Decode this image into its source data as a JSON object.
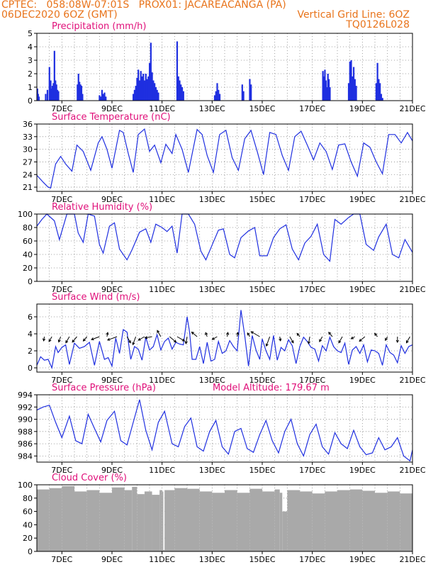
{
  "header": {
    "line1_left": "CPTEC:   058:08W-07:01S   PROX01: JACAREACANGA (PA)",
    "line2_left": "06DEC2020 6OZ (GMT)",
    "line2_right": "Vertical Grid Line: 6OZ",
    "line3_right": "TQ0126L028"
  },
  "colors": {
    "header": "#e8731a",
    "title": "#e0107a",
    "line": "#1f2fe0",
    "cloud": "#a9a9a9"
  },
  "chart_data": [
    {
      "id": "precip",
      "type": "bar",
      "title": "Precipitation (mm/h)",
      "ylim": [
        0,
        5
      ],
      "yticks": [
        0,
        1,
        2,
        3,
        4,
        5
      ],
      "x_unit": "days since 06DEC2020 06Z",
      "xlim": [
        0,
        15
      ],
      "x_tick_values": [
        1,
        3,
        5,
        7,
        9,
        11,
        13,
        15
      ],
      "x_tick_labels": [
        "7DEC",
        "9DEC",
        "11DEC",
        "13DEC",
        "15DEC",
        "17DEC",
        "19DEC",
        "21DEC"
      ],
      "x": [
        0.02,
        0.05,
        0.08,
        0.35,
        0.42,
        0.5,
        0.55,
        0.58,
        0.62,
        0.66,
        0.7,
        0.74,
        0.78,
        0.82,
        0.86,
        1.62,
        1.66,
        1.7,
        1.74,
        1.78,
        1.82,
        2.5,
        2.55,
        2.6,
        2.65,
        2.7,
        2.75,
        3.85,
        3.9,
        3.95,
        4.0,
        4.05,
        4.1,
        4.15,
        4.2,
        4.25,
        4.3,
        4.35,
        4.4,
        4.45,
        4.5,
        4.55,
        4.6,
        4.65,
        4.7,
        4.75,
        4.8,
        4.85,
        5.6,
        5.65,
        5.7,
        5.75,
        5.8,
        5.85,
        7.1,
        7.15,
        7.2,
        7.25,
        7.3,
        8.2,
        8.25,
        8.5,
        8.55,
        11.42,
        11.46,
        11.5,
        11.54,
        11.58,
        11.62,
        11.66,
        11.7,
        12.45,
        12.5,
        12.55,
        12.6,
        12.65,
        12.7,
        12.75,
        13.55,
        13.6,
        13.65,
        13.7,
        13.75,
        13.8
      ],
      "values": [
        0.9,
        0.5,
        0.3,
        0.5,
        0.8,
        2.5,
        1.5,
        0.9,
        1.1,
        1.3,
        3.7,
        1.5,
        1.2,
        0.8,
        0.7,
        1.2,
        2.0,
        1.4,
        1.2,
        1.1,
        0.5,
        0.4,
        0.3,
        0.8,
        0.5,
        0.6,
        0.3,
        0.5,
        0.8,
        1.1,
        1.7,
        2.3,
        1.5,
        2.2,
        1.8,
        2.0,
        1.5,
        2.0,
        1.6,
        1.8,
        2.8,
        4.3,
        2.1,
        1.5,
        1.3,
        1.0,
        0.8,
        0.6,
        4.4,
        1.8,
        1.5,
        1.2,
        1.0,
        0.7,
        0.4,
        0.7,
        1.3,
        0.8,
        0.5,
        1.2,
        0.7,
        1.6,
        1.2,
        2.2,
        1.8,
        2.3,
        1.5,
        1.0,
        2.0,
        1.6,
        1.0,
        1.3,
        2.9,
        3.0,
        1.8,
        2.5,
        1.6,
        1.1,
        1.3,
        2.8,
        1.6,
        1.3,
        0.5,
        0.2
      ],
      "grid": true
    },
    {
      "id": "temp",
      "type": "line",
      "title": "Surface Temperature (nC)",
      "ylim": [
        20,
        36
      ],
      "yticks": [
        21,
        24,
        27,
        30,
        33,
        36
      ],
      "x_unit": "days since 06DEC2020 06Z",
      "xlim": [
        0,
        15
      ],
      "x_tick_values": [
        1,
        3,
        5,
        7,
        9,
        11,
        13,
        15
      ],
      "x_tick_labels": [
        "7DEC",
        "9DEC",
        "11DEC",
        "13DEC",
        "15DEC",
        "17DEC",
        "19DEC",
        "21DEC"
      ],
      "x": [
        0,
        0.25,
        0.45,
        0.55,
        0.75,
        0.95,
        1.15,
        1.4,
        1.6,
        1.85,
        2.15,
        2.45,
        2.6,
        2.8,
        3.0,
        3.3,
        3.45,
        3.65,
        3.85,
        4.05,
        4.3,
        4.5,
        4.7,
        4.95,
        5.15,
        5.4,
        5.55,
        5.8,
        6.05,
        6.4,
        6.6,
        6.8,
        7.05,
        7.3,
        7.55,
        7.8,
        8.05,
        8.3,
        8.55,
        8.8,
        9.05,
        9.3,
        9.55,
        9.8,
        10.05,
        10.3,
        10.55,
        10.8,
        11.05,
        11.3,
        11.55,
        11.8,
        12.05,
        12.3,
        12.55,
        12.8,
        13.05,
        13.3,
        13.55,
        13.8,
        14.05,
        14.3,
        14.55,
        14.8,
        15.0
      ],
      "values": [
        23.8,
        22.2,
        21.0,
        20.8,
        26.5,
        28.3,
        26.5,
        24.8,
        31.0,
        29.5,
        25.0,
        31.5,
        33.0,
        30.0,
        25.5,
        34.5,
        34.0,
        29.0,
        24.5,
        33.5,
        34.8,
        29.5,
        31.0,
        26.8,
        31.2,
        29.0,
        33.5,
        30.0,
        24.5,
        34.7,
        33.5,
        28.5,
        24.5,
        33.5,
        34.5,
        28.0,
        25.0,
        32.5,
        34.5,
        29.5,
        24.0,
        34.0,
        33.5,
        28.5,
        25.0,
        33.0,
        34.3,
        31.0,
        27.5,
        31.5,
        29.5,
        25.2,
        31.0,
        31.3,
        27.0,
        23.6,
        31.5,
        30.5,
        27.0,
        24.2,
        33.5,
        33.5,
        31.5,
        34.0,
        32.0
      ],
      "grid": true
    },
    {
      "id": "rh",
      "type": "line",
      "title": "Relative Humidity (%)",
      "ylim": [
        0,
        100
      ],
      "yticks": [
        0,
        20,
        40,
        60,
        80,
        100
      ],
      "x_unit": "days since 06DEC2020 06Z",
      "xlim": [
        0,
        15
      ],
      "x_tick_values": [
        1,
        3,
        5,
        7,
        9,
        11,
        13,
        15
      ],
      "x_tick_labels": [
        "7DEC",
        "9DEC",
        "11DEC",
        "13DEC",
        "15DEC",
        "17DEC",
        "19DEC",
        "21DEC"
      ],
      "x": [
        0,
        0.2,
        0.4,
        0.7,
        0.9,
        1.2,
        1.5,
        1.65,
        1.85,
        2.05,
        2.3,
        2.5,
        2.65,
        2.9,
        3.1,
        3.3,
        3.6,
        3.8,
        4.1,
        4.35,
        4.55,
        4.75,
        5.0,
        5.2,
        5.4,
        5.6,
        5.8,
        5.95,
        6.05,
        6.3,
        6.55,
        6.75,
        7.0,
        7.25,
        7.45,
        7.7,
        7.9,
        8.15,
        8.45,
        8.7,
        8.9,
        9.2,
        9.45,
        9.7,
        9.95,
        10.2,
        10.45,
        10.7,
        10.95,
        11.2,
        11.45,
        11.7,
        11.9,
        12.15,
        12.45,
        12.65,
        12.9,
        13.15,
        13.45,
        13.65,
        13.95,
        14.2,
        14.45,
        14.7,
        15.0
      ],
      "values": [
        82,
        92,
        100,
        90,
        62,
        100,
        100,
        72,
        58,
        100,
        97,
        55,
        42,
        82,
        87,
        48,
        32,
        47,
        73,
        78,
        58,
        85,
        80,
        74,
        82,
        42,
        100,
        100,
        100,
        85,
        45,
        32,
        54,
        76,
        78,
        40,
        35,
        65,
        75,
        80,
        38,
        38,
        65,
        78,
        84,
        48,
        32,
        57,
        67,
        85,
        40,
        30,
        92,
        85,
        95,
        100,
        100,
        55,
        46,
        66,
        85,
        40,
        35,
        62,
        43
      ],
      "grid": true
    },
    {
      "id": "wind",
      "type": "line",
      "title": "Surface Wind (m/s)",
      "ylim": [
        -0.5,
        7.5
      ],
      "yticks": [
        0,
        2,
        4,
        6
      ],
      "x_unit": "days since 06DEC2020 06Z",
      "xlim": [
        0,
        15
      ],
      "x_tick_values": [
        1,
        3,
        5,
        7,
        9,
        11,
        13,
        15
      ],
      "x_tick_labels": [
        "7DEC",
        "9DEC",
        "11DEC",
        "13DEC",
        "15DEC",
        "17DEC",
        "19DEC",
        "21DEC"
      ],
      "x": [
        0,
        0.15,
        0.3,
        0.45,
        0.6,
        0.75,
        0.85,
        1.0,
        1.15,
        1.3,
        1.5,
        1.7,
        1.9,
        2.1,
        2.3,
        2.5,
        2.7,
        2.85,
        3.0,
        3.15,
        3.3,
        3.45,
        3.6,
        3.75,
        3.9,
        4.05,
        4.2,
        4.35,
        4.5,
        4.65,
        4.8,
        4.95,
        5.1,
        5.25,
        5.4,
        5.55,
        5.7,
        5.85,
        6.0,
        6.1,
        6.2,
        6.35,
        6.5,
        6.65,
        6.8,
        6.95,
        7.1,
        7.25,
        7.4,
        7.55,
        7.7,
        7.85,
        8.0,
        8.15,
        8.3,
        8.45,
        8.6,
        8.75,
        8.9,
        9.0,
        9.15,
        9.3,
        9.45,
        9.6,
        9.75,
        9.9,
        10.05,
        10.2,
        10.35,
        10.5,
        10.65,
        10.8,
        10.95,
        11.1,
        11.25,
        11.4,
        11.55,
        11.7,
        11.85,
        12.0,
        12.15,
        12.3,
        12.45,
        12.6,
        12.75,
        12.9,
        13.05,
        13.2,
        13.35,
        13.5,
        13.65,
        13.8,
        13.95,
        14.1,
        14.25,
        14.4,
        14.55,
        14.7,
        14.85,
        15.0
      ],
      "values": [
        0.3,
        1.3,
        0.9,
        1.0,
        0.0,
        2.5,
        1.8,
        2.4,
        2.7,
        0.4,
        2.9,
        2.3,
        2.5,
        3.0,
        0.3,
        3.1,
        1.0,
        1.2,
        0.2,
        3.5,
        1.7,
        4.5,
        4.2,
        1.0,
        2.5,
        2.2,
        0.9,
        3.6,
        2.1,
        2.5,
        3.9,
        2.1,
        3.1,
        3.5,
        2.2,
        3.0,
        2.8,
        2.7,
        6.0,
        4.2,
        1.0,
        1.0,
        2.5,
        0.5,
        3.0,
        0.8,
        1.0,
        3.1,
        1.7,
        2.0,
        3.2,
        2.5,
        2.0,
        6.8,
        3.8,
        0.2,
        3.8,
        2.1,
        1.0,
        3.4,
        2.0,
        1.0,
        3.8,
        0.9,
        2.4,
        2.0,
        3.3,
        2.6,
        0.5,
        2.5,
        3.6,
        3.1,
        2.4,
        2.2,
        0.8,
        2.6,
        2.0,
        3.6,
        2.5,
        2.0,
        1.8,
        2.9,
        0.4,
        2.1,
        2.5,
        1.7,
        2.7,
        0.7,
        2.1,
        2.0,
        1.7,
        0.3,
        2.7,
        1.8,
        1.5,
        0.6,
        2.6,
        1.7,
        2.5,
        2.7
      ],
      "arrows": {
        "x": [
          0.3,
          0.6,
          0.95,
          1.3,
          1.6,
          2.0,
          2.5,
          2.8,
          3.2,
          3.6,
          3.95,
          4.3,
          4.6,
          4.95,
          5.3,
          5.6,
          6.0,
          6.4,
          6.8,
          7.2,
          7.6,
          8.0,
          8.5,
          8.9,
          9.3,
          9.7,
          10.1,
          10.5,
          10.9,
          11.4,
          11.8,
          12.2,
          12.7,
          13.1,
          13.6,
          14.0,
          14.4,
          14.9
        ],
        "dir_deg": [
          260,
          240,
          250,
          240,
          230,
          230,
          200,
          80,
          200,
          300,
          250,
          210,
          190,
          120,
          320,
          330,
          260,
          140,
          110,
          210,
          80,
          80,
          120,
          150,
          250,
          280,
          300,
          130,
          260,
          240,
          130,
          240,
          210,
          220,
          130,
          240,
          270,
          240
        ],
        "length": [
          6,
          8,
          8,
          10,
          10,
          8,
          12,
          6,
          14,
          10,
          12,
          10,
          10,
          10,
          12,
          12,
          10,
          10,
          6,
          8,
          6,
          6,
          6,
          14,
          14,
          6,
          10,
          6,
          10,
          8,
          8,
          10,
          6,
          10,
          6,
          6,
          8,
          10
        ]
      },
      "grid": true
    },
    {
      "id": "pres",
      "type": "line",
      "title": "Surface Pressure (hPa)",
      "subtitle": "Model Altitude: 179.67 m",
      "ylim": [
        983,
        994
      ],
      "yticks": [
        984,
        986,
        988,
        990,
        992,
        994
      ],
      "x_unit": "days since 06DEC2020 06Z",
      "xlim": [
        0,
        15
      ],
      "x_tick_values": [
        1,
        3,
        5,
        7,
        9,
        11,
        13,
        15
      ],
      "x_tick_labels": [
        "7DEC",
        "9DEC",
        "11DEC",
        "13DEC",
        "15DEC",
        "17DEC",
        "19DEC",
        "21DEC"
      ],
      "x": [
        0,
        0.25,
        0.5,
        0.75,
        1.0,
        1.3,
        1.55,
        1.8,
        2.05,
        2.3,
        2.55,
        2.8,
        3.1,
        3.35,
        3.6,
        3.85,
        4.1,
        4.35,
        4.6,
        4.85,
        5.1,
        5.4,
        5.65,
        5.9,
        6.15,
        6.4,
        6.65,
        6.9,
        7.15,
        7.4,
        7.65,
        7.9,
        8.15,
        8.4,
        8.65,
        8.9,
        9.15,
        9.4,
        9.65,
        9.9,
        10.15,
        10.4,
        10.65,
        10.9,
        11.15,
        11.4,
        11.65,
        11.9,
        12.15,
        12.4,
        12.65,
        12.9,
        13.15,
        13.4,
        13.65,
        13.9,
        14.15,
        14.4,
        14.65,
        14.9,
        15.0
      ],
      "values": [
        991.5,
        992.0,
        992.3,
        989.5,
        987.0,
        990.5,
        986.5,
        986.0,
        990.8,
        988.5,
        986.3,
        989.8,
        991.3,
        986.5,
        985.8,
        989.5,
        993.2,
        988.2,
        985.0,
        989.5,
        991.3,
        986.0,
        985.5,
        988.8,
        990.2,
        985.5,
        984.8,
        988.0,
        989.8,
        985.5,
        984.3,
        988.0,
        988.5,
        985.2,
        984.6,
        987.5,
        989.8,
        986.5,
        984.5,
        988.0,
        990.0,
        986.0,
        984.0,
        987.5,
        989.2,
        985.5,
        984.3,
        987.8,
        986.0,
        985.2,
        988.2,
        985.5,
        984.2,
        984.5,
        987.0,
        985.0,
        985.5,
        987.0,
        984.0,
        983.2,
        985.0
      ],
      "grid": true
    },
    {
      "id": "cloud",
      "type": "area",
      "title": "Cloud Cover (%)",
      "ylim": [
        0,
        100
      ],
      "yticks": [
        0,
        20,
        40,
        60,
        80,
        100
      ],
      "x_unit": "days since 06DEC2020 06Z",
      "xlim": [
        0,
        15
      ],
      "x_tick_values": [
        1,
        3,
        5,
        7,
        9,
        11,
        13,
        15
      ],
      "x_tick_labels": [
        "7DEC",
        "9DEC",
        "11DEC",
        "13DEC",
        "15DEC",
        "17DEC",
        "19DEC",
        "21DEC"
      ],
      "x": [
        0,
        0.5,
        1.0,
        1.5,
        2.0,
        2.5,
        3.0,
        3.5,
        3.8,
        4.0,
        4.3,
        4.6,
        4.9,
        5.0,
        5.05,
        5.1,
        5.5,
        6.0,
        6.5,
        7.0,
        7.5,
        8.0,
        8.5,
        9.0,
        9.5,
        9.7,
        9.8,
        10.0,
        10.5,
        11.0,
        11.5,
        12.0,
        12.5,
        13.0,
        13.5,
        14.0,
        14.5,
        15.0
      ],
      "values": [
        93,
        95,
        98,
        90,
        92,
        88,
        96,
        92,
        97,
        86,
        90,
        85,
        92,
        90,
        2,
        92,
        95,
        94,
        90,
        88,
        92,
        88,
        94,
        90,
        93,
        88,
        60,
        92,
        90,
        87,
        90,
        92,
        93,
        91,
        88,
        90,
        87,
        93
      ],
      "grid": true
    }
  ]
}
